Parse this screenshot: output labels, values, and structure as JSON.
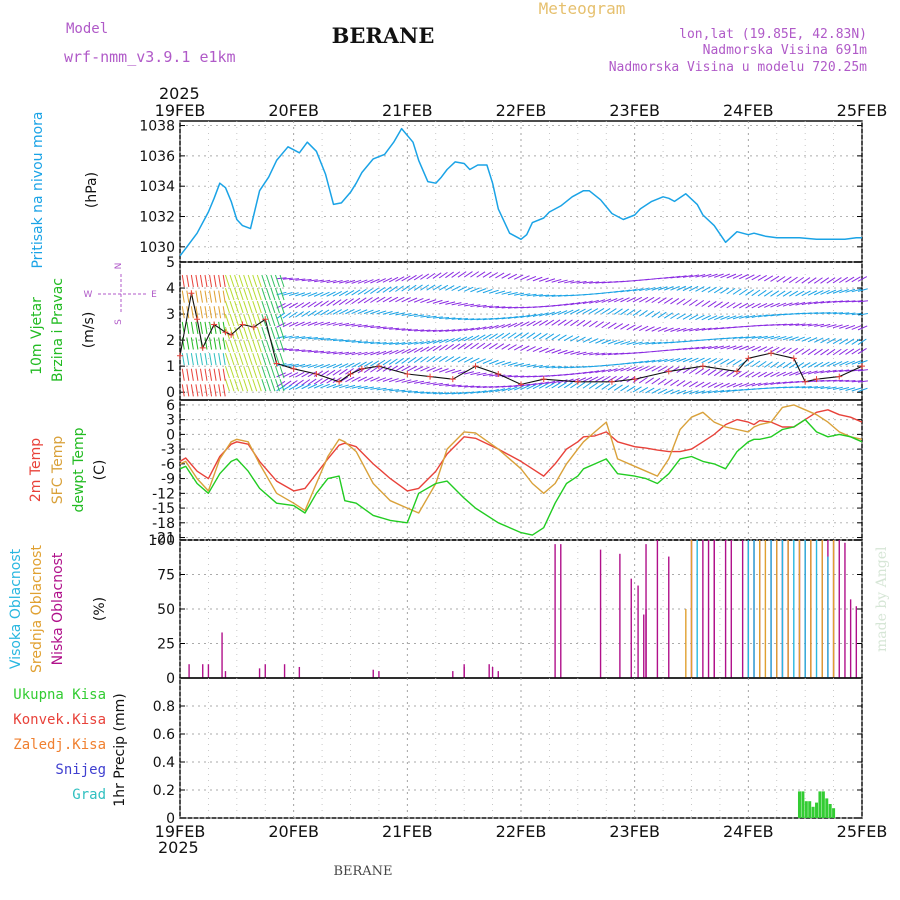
{
  "header": {
    "model_label": "Model",
    "model_name": "wrf-nmm_v3.9.1 e1km",
    "station": "BERANE",
    "meteogram": "Meteogram",
    "lonlat": "lon,lat (19.85E, 42.83N)",
    "elevation": "Nadmorska Visina 691m",
    "model_elevation": "Nadmorska Visina u modelu 720.25m",
    "year": "2025",
    "footer_station": "BERANE",
    "watermark": "made by Angel"
  },
  "colors": {
    "pressure": "#1aa3e6",
    "t2m": "#e8423a",
    "tsfc": "#d9a13a",
    "dew": "#22cc22",
    "cloud_high": "#29b7e0",
    "cloud_mid": "#e0a030",
    "cloud_low": "#b0108a",
    "precip": "#33cc33",
    "purple": "#9a40c8"
  },
  "x_ticks": [
    "19FEB",
    "20FEB",
    "21FEB",
    "22FEB",
    "23FEB",
    "24FEB",
    "25FEB"
  ],
  "chart_data": [
    {
      "type": "line",
      "panel": "pressure",
      "labels": [
        "Pritisak na nivou mora",
        "(hPa)"
      ],
      "ylim": [
        1029,
        1038.3
      ],
      "yticks": [
        1030,
        1032,
        1034,
        1036,
        1038
      ],
      "series": [
        {
          "x": [
            0,
            0.05,
            0.15,
            0.25,
            0.3,
            0.35,
            0.4,
            0.45,
            0.5,
            0.55,
            0.62,
            0.7,
            0.78,
            0.85,
            0.95,
            1.05,
            1.12,
            1.2,
            1.28,
            1.35,
            1.42,
            1.5,
            1.55,
            1.6,
            1.7,
            1.8,
            1.88,
            1.95,
            2.05,
            2.1,
            2.18,
            2.25,
            2.3,
            2.35,
            2.42,
            2.5,
            2.55,
            2.62,
            2.7,
            2.75,
            2.8,
            2.9,
            3.0,
            3.05,
            3.1,
            3.2,
            3.25,
            3.35,
            3.45,
            3.55,
            3.6,
            3.7,
            3.8,
            3.9,
            4.0,
            4.05,
            4.15,
            4.25,
            4.3,
            4.35,
            4.45,
            4.55,
            4.6,
            4.7,
            4.8,
            4.9,
            5.0,
            5.05,
            5.15,
            5.25,
            5.3,
            5.35,
            5.45,
            5.6,
            5.65,
            5.75,
            5.85,
            5.95,
            6.0
          ],
          "values": [
            1029.4,
            1029.9,
            1030.9,
            1032.3,
            1033.2,
            1034.2,
            1033.9,
            1033.0,
            1031.8,
            1031.4,
            1031.2,
            1033.7,
            1034.6,
            1035.7,
            1036.6,
            1036.2,
            1036.9,
            1036.3,
            1034.8,
            1032.8,
            1032.9,
            1033.6,
            1034.2,
            1034.9,
            1035.8,
            1036.1,
            1036.9,
            1037.8,
            1036.9,
            1035.7,
            1034.3,
            1034.2,
            1034.6,
            1035.1,
            1035.6,
            1035.5,
            1035.1,
            1035.4,
            1035.4,
            1034.2,
            1032.5,
            1030.9,
            1030.5,
            1030.8,
            1031.6,
            1031.9,
            1032.3,
            1032.7,
            1033.3,
            1033.7,
            1033.7,
            1033.1,
            1032.2,
            1031.8,
            1032.1,
            1032.5,
            1033.0,
            1033.3,
            1033.2,
            1033.0,
            1033.5,
            1032.8,
            1032.1,
            1031.4,
            1030.3,
            1031.0,
            1030.8,
            1030.9,
            1030.7,
            1030.6,
            1030.6,
            1030.6,
            1030.6,
            1030.5,
            1030.5,
            1030.5,
            1030.5,
            1030.6,
            1030.6
          ],
          "color_key": "pressure"
        }
      ]
    },
    {
      "type": "vector",
      "panel": "wind",
      "labels": [
        "10m Vjetar",
        "Brzina i Pravac",
        "(m/s)"
      ],
      "compass": [
        "N",
        "E",
        "W",
        "S"
      ],
      "ylim": [
        -0.3,
        5
      ],
      "yticks": [
        0,
        1,
        2,
        3,
        4,
        5
      ],
      "series": [
        {
          "name": "speed",
          "x": [
            0,
            0.1,
            0.15,
            0.2,
            0.3,
            0.4,
            0.45,
            0.55,
            0.65,
            0.75,
            0.85,
            1.0,
            1.2,
            1.4,
            1.5,
            1.6,
            1.75,
            2.0,
            2.2,
            2.4,
            2.6,
            2.8,
            3.0,
            3.2,
            3.5,
            3.8,
            4.0,
            4.3,
            4.6,
            4.9,
            5.0,
            5.2,
            5.4,
            5.5,
            5.6,
            5.8,
            6.0
          ],
          "values": [
            1.4,
            3.8,
            2.8,
            1.7,
            2.6,
            2.3,
            2.2,
            2.6,
            2.5,
            2.8,
            1.1,
            0.9,
            0.7,
            0.4,
            0.7,
            0.9,
            1.0,
            0.7,
            0.6,
            0.5,
            1.0,
            0.7,
            0.3,
            0.5,
            0.4,
            0.4,
            0.5,
            0.8,
            1.0,
            0.8,
            1.3,
            1.5,
            1.3,
            0.4,
            0.5,
            0.6,
            1.0
          ]
        }
      ]
    },
    {
      "type": "line",
      "panel": "temperature",
      "labels": [
        "2m Temp",
        "SFC Temp",
        "dewpt Temp",
        "(C)"
      ],
      "ylim": [
        -21.5,
        7
      ],
      "yticks": [
        6,
        3,
        0,
        -3,
        -6,
        -9,
        -12,
        -15,
        -18,
        -21
      ],
      "x": [
        0,
        0.05,
        0.15,
        0.25,
        0.35,
        0.45,
        0.5,
        0.6,
        0.7,
        0.85,
        1.0,
        1.1,
        1.2,
        1.3,
        1.4,
        1.45,
        1.55,
        1.7,
        1.85,
        2.0,
        2.1,
        2.25,
        2.35,
        2.5,
        2.6,
        2.8,
        3.0,
        3.1,
        3.2,
        3.3,
        3.4,
        3.5,
        3.55,
        3.65,
        3.75,
        3.85,
        4.0,
        4.1,
        4.2,
        4.3,
        4.4,
        4.5,
        4.6,
        4.7,
        4.8,
        4.9,
        5.0,
        5.05,
        5.1,
        5.2,
        5.3,
        5.4,
        5.5,
        5.6,
        5.7,
        5.8,
        5.9,
        6.0
      ],
      "series": [
        {
          "name": "2m Temp",
          "color_key": "t2m",
          "values": [
            -5.5,
            -4.8,
            -7.5,
            -9.0,
            -4.5,
            -2.0,
            -1.5,
            -2.0,
            -5.5,
            -9.5,
            -11.5,
            -11.0,
            -8.0,
            -5.0,
            -2.2,
            -1.8,
            -2.5,
            -6.0,
            -9.0,
            -11.5,
            -11.0,
            -7.5,
            -4.0,
            -0.5,
            -0.8,
            -3.0,
            -5.5,
            -7.0,
            -8.5,
            -6.0,
            -3.0,
            -1.5,
            -0.5,
            -0.3,
            0.5,
            -1.5,
            -2.5,
            -2.8,
            -3.2,
            -3.5,
            -3.5,
            -3.0,
            -1.5,
            0.0,
            2.0,
            3.0,
            2.5,
            2.0,
            2.8,
            2.5,
            1.5,
            1.5,
            3.0,
            4.5,
            5.0,
            4.0,
            3.5,
            2.5
          ]
        },
        {
          "name": "SFC Temp",
          "color_key": "tsfc",
          "values": [
            -6.0,
            -5.5,
            -9.0,
            -11.5,
            -5.0,
            -1.5,
            -1.0,
            -1.5,
            -6.0,
            -12.0,
            -14.0,
            -15.5,
            -10.0,
            -4.5,
            -1.0,
            -1.5,
            -3.5,
            -10.0,
            -13.5,
            -15.0,
            -16.0,
            -10.0,
            -3.0,
            0.5,
            0.3,
            -3.0,
            -7.0,
            -10.0,
            -12.0,
            -10.0,
            -6.0,
            -3.0,
            -1.5,
            0.5,
            2.5,
            -5.0,
            -6.5,
            -7.5,
            -8.5,
            -5.0,
            1.0,
            3.5,
            4.5,
            2.5,
            1.5,
            1.0,
            0.5,
            1.5,
            2.0,
            2.5,
            5.5,
            6.0,
            5.0,
            4.0,
            2.5,
            0.5,
            -0.5,
            -1.0
          ]
        },
        {
          "name": "dewpt Temp",
          "color_key": "dew",
          "values": [
            -7.0,
            -6.5,
            -10.0,
            -12.0,
            -8.0,
            -5.5,
            -5.0,
            -7.5,
            -11.0,
            -14.0,
            -14.5,
            -16.0,
            -12.0,
            -9.0,
            -8.5,
            -13.5,
            -14.0,
            -16.5,
            -17.5,
            -18.0,
            -12.0,
            -10.0,
            -9.5,
            -13.0,
            -15.0,
            -18.0,
            -20.0,
            -20.5,
            -19.0,
            -14.0,
            -10.0,
            -8.5,
            -7.0,
            -6.0,
            -5.0,
            -8.0,
            -8.5,
            -9.0,
            -10.0,
            -8.0,
            -5.0,
            -4.5,
            -5.5,
            -6.0,
            -7.0,
            -3.5,
            -1.5,
            -1.0,
            -1.0,
            -0.5,
            1.0,
            1.5,
            3.0,
            0.5,
            -0.5,
            0.0,
            -0.5,
            -1.5
          ]
        }
      ]
    },
    {
      "type": "bar",
      "panel": "clouds",
      "labels": [
        "Visoka Oblacnost",
        "Srednja Oblacnost",
        "Niska Oblacnost",
        "(%)"
      ],
      "ylim": [
        0,
        100
      ],
      "yticks": [
        0,
        25,
        50,
        75,
        100
      ],
      "series": [
        {
          "name": "Niska Oblacnost",
          "color_key": "cloud_low",
          "x": [
            0.08,
            0.2,
            0.25,
            0.37,
            0.4,
            0.7,
            0.75,
            0.92,
            1.05,
            1.7,
            1.75,
            2.4,
            2.5,
            2.5,
            2.72,
            2.75,
            2.8,
            3.3,
            3.35,
            3.7,
            3.87,
            3.97,
            4.03,
            4.08,
            4.1,
            4.1,
            4.2,
            4.3,
            4.5,
            4.6,
            4.65,
            4.7,
            4.7,
            4.8,
            4.85,
            4.95,
            5.0,
            5.05,
            5.1,
            5.2,
            5.25,
            5.3,
            5.35,
            5.45,
            5.5,
            5.55,
            5.65,
            5.7,
            5.75,
            5.8,
            5.85,
            5.9,
            5.95
          ],
          "values": [
            10,
            10,
            10,
            33,
            5,
            7,
            10,
            10,
            8,
            6,
            5,
            5,
            8,
            10,
            10,
            8,
            5,
            97,
            97,
            93,
            90,
            72,
            67,
            46,
            97,
            50,
            100,
            88,
            100,
            100,
            100,
            100,
            100,
            100,
            100,
            100,
            100,
            100,
            100,
            100,
            100,
            100,
            100,
            100,
            100,
            100,
            100,
            100,
            100,
            100,
            98,
            57,
            52
          ]
        },
        {
          "name": "Srednja Oblacnost",
          "color_key": "cloud_mid",
          "x": [
            4.45,
            4.5,
            5.1,
            5.15,
            5.25,
            5.35,
            5.45,
            5.55,
            5.65,
            5.75
          ],
          "values": [
            50,
            100,
            100,
            100,
            100,
            100,
            100,
            100,
            100,
            100
          ]
        },
        {
          "name": "Visoka Oblacnost",
          "color_key": "cloud_high",
          "x": [
            4.55,
            5.0,
            5.05,
            5.2,
            5.3,
            5.4,
            5.5,
            5.6,
            5.7
          ],
          "values": [
            100,
            100,
            100,
            100,
            100,
            100,
            100,
            100,
            88
          ]
        }
      ]
    },
    {
      "type": "bar",
      "panel": "precip",
      "labels": [
        "Ukupna Kisa",
        "Konvek.Kisa",
        "Zaledj.Kisa",
        "Snijeg",
        "Grad",
        "1hr Precip (mm)"
      ],
      "ylim": [
        0,
        1
      ],
      "yticks": [
        0,
        0.2,
        0.4,
        0.6,
        0.8
      ],
      "series": [
        {
          "name": "Ukupna Kisa",
          "color_key": "precip",
          "x": [
            5.45,
            5.48,
            5.51,
            5.54,
            5.57,
            5.6,
            5.63,
            5.66,
            5.69,
            5.72,
            5.75
          ],
          "values": [
            0.19,
            0.19,
            0.12,
            0.12,
            0.08,
            0.11,
            0.19,
            0.19,
            0.14,
            0.1,
            0.07
          ]
        }
      ]
    }
  ]
}
